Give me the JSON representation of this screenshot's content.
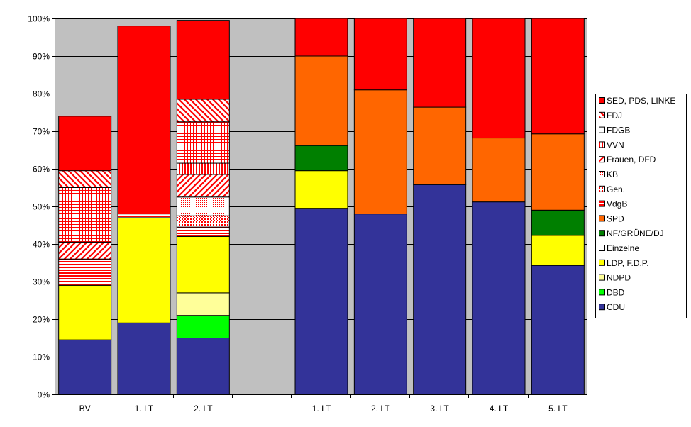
{
  "colors": {
    "plot_background": "#c0c0c0",
    "gridline": "#000000"
  },
  "chart_data": {
    "type": "bar",
    "stacked": "percent",
    "categories": [
      "BV",
      "1. LT",
      "2. LT",
      "",
      "1. LT",
      "2. LT",
      "3. LT",
      "4. LT",
      "5. LT"
    ],
    "ylim": [
      0,
      100
    ],
    "yticks": [
      "0%",
      "10%",
      "20%",
      "30%",
      "40%",
      "50%",
      "60%",
      "70%",
      "80%",
      "90%",
      "100%"
    ],
    "grid": true,
    "legend_position": "right",
    "series": [
      {
        "name": "CDU",
        "color": "#333399",
        "pattern": "solid",
        "values": [
          14.5,
          19,
          15,
          0,
          49.5,
          48,
          55.8,
          51.2,
          34.3
        ]
      },
      {
        "name": "DBD",
        "color": "#00ff00",
        "pattern": "solid",
        "values": [
          0,
          0,
          6,
          0,
          0,
          0,
          0,
          0,
          0
        ]
      },
      {
        "name": "NDPD",
        "color": "#ffff99",
        "pattern": "solid",
        "values": [
          0,
          0,
          6,
          0,
          0,
          0,
          0,
          0,
          0
        ]
      },
      {
        "name": "LDP, F.D.P.",
        "color": "#ffff00",
        "pattern": "solid",
        "values": [
          14.5,
          28,
          15,
          0,
          10,
          0,
          0,
          0,
          8
        ]
      },
      {
        "name": "Einzelne",
        "color": "#ffffff",
        "pattern": "solid",
        "values": [
          0,
          0,
          0,
          0,
          0,
          0,
          0,
          0,
          0
        ]
      },
      {
        "name": "NF/GRÜNE/DJ",
        "color": "#007f00",
        "pattern": "solid",
        "values": [
          0,
          0,
          0,
          0,
          6.7,
          0,
          0,
          0,
          6.7
        ]
      },
      {
        "name": "SPD",
        "color": "#ff6600",
        "pattern": "solid",
        "values": [
          0,
          0,
          0,
          0,
          23.8,
          33,
          20.6,
          17,
          20.3
        ]
      },
      {
        "name": "VdgB",
        "color": "#ff0000",
        "pattern": "hlines",
        "values": [
          7,
          1,
          2.5,
          0,
          0,
          0,
          0,
          0,
          0
        ]
      },
      {
        "name": "Gen.",
        "color": "#ff0000",
        "pattern": "dots",
        "values": [
          0,
          0,
          3,
          0,
          0,
          0,
          0,
          0,
          0
        ]
      },
      {
        "name": "KB",
        "color": "#ff0000",
        "pattern": "dots-fine",
        "values": [
          0,
          0,
          5,
          0,
          0,
          0,
          0,
          0,
          0
        ]
      },
      {
        "name": "Frauen, DFD",
        "color": "#ff0000",
        "pattern": "diag-up",
        "values": [
          4.5,
          0,
          6,
          0,
          0,
          0,
          0,
          0,
          0
        ]
      },
      {
        "name": "VVN",
        "color": "#ff0000",
        "pattern": "vlines",
        "values": [
          0,
          0,
          3,
          0,
          0,
          0,
          0,
          0,
          0
        ]
      },
      {
        "name": "FDGB",
        "color": "#ff0000",
        "pattern": "grid",
        "values": [
          14.5,
          0,
          11,
          0,
          0,
          0,
          0,
          0,
          0
        ]
      },
      {
        "name": "FDJ",
        "color": "#ff0000",
        "pattern": "diag-down",
        "values": [
          4.5,
          0,
          6,
          0,
          0,
          0,
          0,
          0,
          0
        ]
      },
      {
        "name": "SED, PDS, LINKE",
        "color": "#ff0000",
        "pattern": "solid",
        "values": [
          14.5,
          50,
          21,
          0,
          10,
          19,
          23.6,
          31.8,
          30.7
        ]
      }
    ],
    "empty_category_color": "#c0c0c0"
  }
}
